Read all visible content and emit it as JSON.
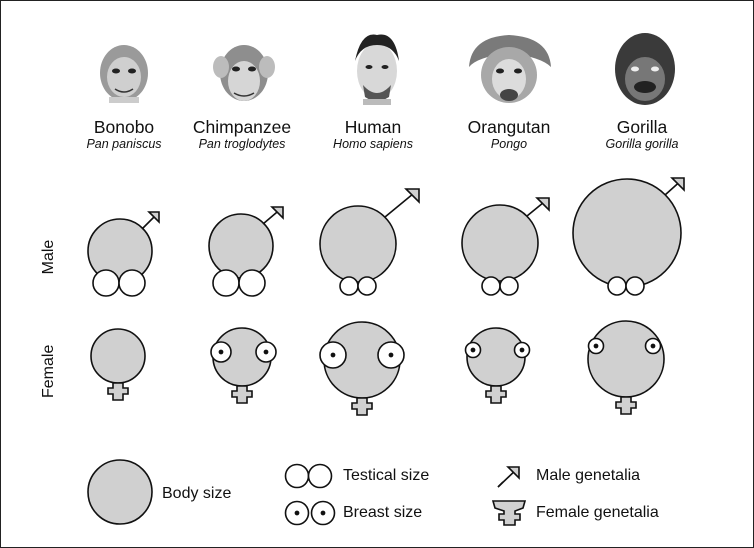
{
  "species": [
    {
      "name": "Bonobo",
      "scientific": "Pan paniscus",
      "portrait": "bonobo-portrait"
    },
    {
      "name": "Chimpanzee",
      "scientific": "Pan troglodytes",
      "portrait": "chimpanzee-portrait"
    },
    {
      "name": "Human",
      "scientific": "Homo sapiens",
      "portrait": "human-portrait"
    },
    {
      "name": "Orangutan",
      "scientific": "Pongo",
      "portrait": "orangutan-portrait"
    },
    {
      "name": "Gorilla",
      "scientific": "Gorilla gorilla",
      "portrait": "gorilla-portrait"
    }
  ],
  "rows": {
    "male": "Male",
    "female": "Female"
  },
  "legend": {
    "body": "Body size",
    "testical": "Testical size",
    "breast": "Breast size",
    "male_gen": "Male genetalia",
    "female_gen": "Female genetalia"
  },
  "colors": {
    "fill": "#d0d0d0",
    "stroke": "#111111",
    "background": "#ffffff"
  }
}
